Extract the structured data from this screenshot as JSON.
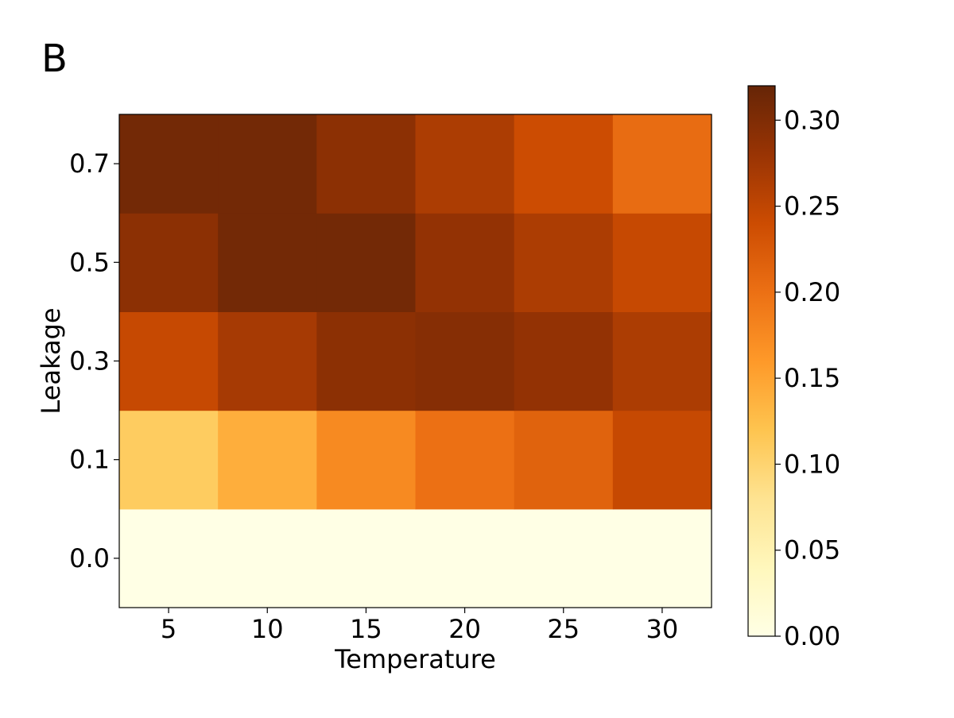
{
  "figure": {
    "panel_label": "B"
  },
  "chart_data": {
    "type": "heatmap",
    "x": [
      5,
      10,
      15,
      20,
      25,
      30
    ],
    "x_tick_labels": [
      "5",
      "10",
      "15",
      "20",
      "25",
      "30"
    ],
    "y": [
      0.0,
      0.1,
      0.3,
      0.5,
      0.7
    ],
    "y_tick_labels": [
      "0.0",
      "0.1",
      "0.3",
      "0.5",
      "0.7"
    ],
    "values": [
      [
        0.0,
        0.0,
        0.0,
        0.0,
        0.0,
        0.0
      ],
      [
        0.11,
        0.14,
        0.175,
        0.2,
        0.215,
        0.245
      ],
      [
        0.245,
        0.27,
        0.29,
        0.295,
        0.285,
        0.265
      ],
      [
        0.29,
        0.31,
        0.31,
        0.285,
        0.265,
        0.245
      ],
      [
        0.31,
        0.31,
        0.29,
        0.265,
        0.24,
        0.205
      ]
    ],
    "xlabel": "Temperature",
    "ylabel": "Leakage",
    "colormap": "YlOrBr",
    "colorbar": {
      "range": [
        0.0,
        0.32
      ],
      "ticks": [
        0.0,
        0.05,
        0.1,
        0.15,
        0.2,
        0.25,
        0.3
      ],
      "tick_labels": [
        "0.00",
        "0.05",
        "0.10",
        "0.15",
        "0.20",
        "0.25",
        "0.30"
      ]
    },
    "colormap_stops": [
      "#ffffe5",
      "#fff7bc",
      "#fee391",
      "#fec44f",
      "#fe9929",
      "#ec7014",
      "#cc4c02",
      "#993404",
      "#662506"
    ],
    "grid": false
  }
}
